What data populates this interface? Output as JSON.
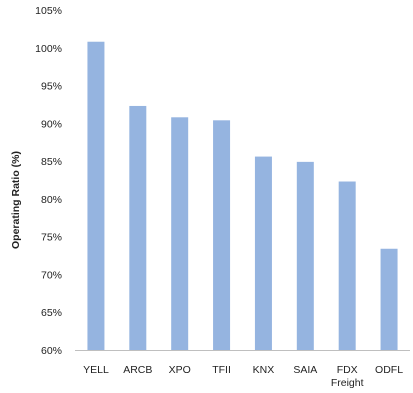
{
  "chart_data": {
    "type": "bar",
    "title": "",
    "xlabel": "",
    "ylabel": "Operating Ratio (%)",
    "ylim": [
      60,
      105
    ],
    "yticks": [
      60,
      65,
      70,
      75,
      80,
      85,
      90,
      95,
      100,
      105
    ],
    "ytick_labels": [
      "60%",
      "65%",
      "70%",
      "75%",
      "80%",
      "85%",
      "90%",
      "95%",
      "100%",
      "105%"
    ],
    "categories": [
      [
        "YELL"
      ],
      [
        "ARCB"
      ],
      [
        "XPO"
      ],
      [
        "TFII"
      ],
      [
        "KNX"
      ],
      [
        "SAIA"
      ],
      [
        "FDX",
        "Freight"
      ],
      [
        "ODFL"
      ]
    ],
    "values": [
      100.8,
      92.3,
      90.8,
      90.4,
      85.6,
      84.9,
      82.3,
      73.4
    ],
    "grid": false,
    "bar_color": "#95b4e0",
    "axis_color": "#bfbfbf"
  }
}
